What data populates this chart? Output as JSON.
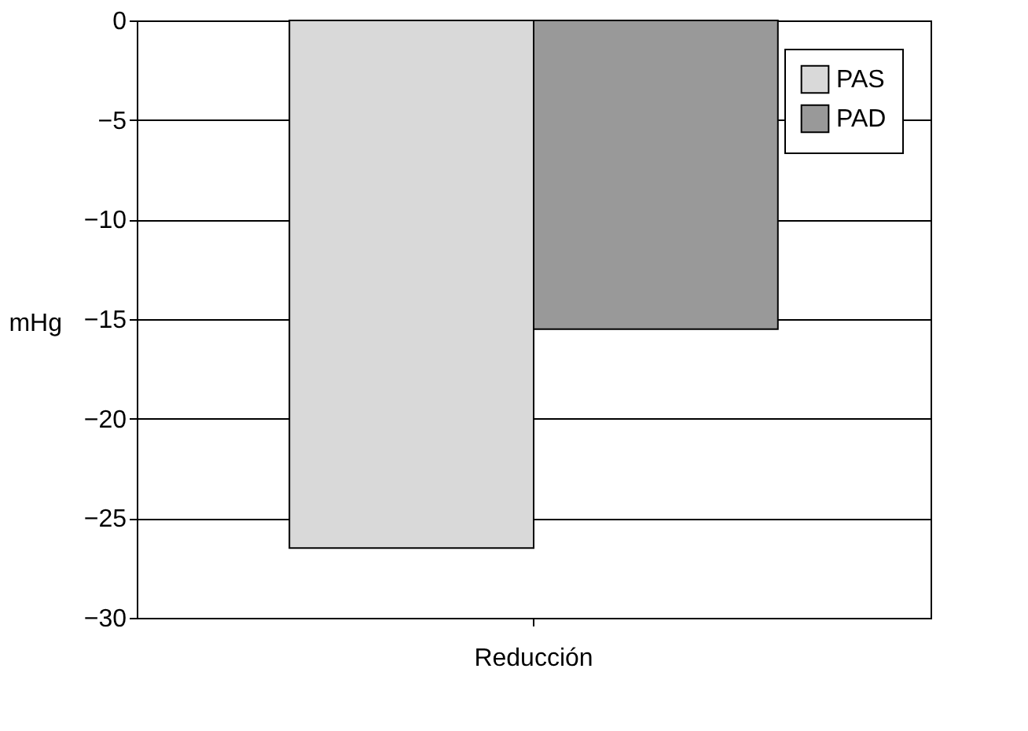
{
  "chart_data": {
    "type": "bar",
    "categories": [
      "Reducción"
    ],
    "ylabel": "mHg",
    "series": [
      {
        "name": "PAS",
        "color": "#d9d9d9",
        "values": [
          -26.5
        ]
      },
      {
        "name": "PAD",
        "color": "#999999",
        "values": [
          -15.5
        ]
      }
    ],
    "ylim": [
      -30,
      0
    ],
    "yticks": [
      -30,
      -25,
      -20,
      -15,
      -10,
      -5,
      0
    ],
    "grid": "y",
    "legend": "top right"
  }
}
